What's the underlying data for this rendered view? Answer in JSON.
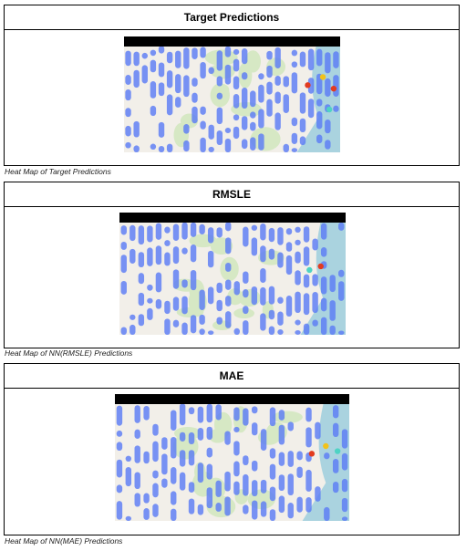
{
  "panels": [
    {
      "title": "Target Predictions",
      "caption": "Heat Map of Target Predictions",
      "map_name": "target-heatmap-map"
    },
    {
      "title": "RMSLE",
      "caption": "Heat Map of NN(RMSLE) Predictions",
      "map_name": "rmsle-heatmap-map"
    },
    {
      "title": "MAE",
      "caption": "Heat Map of NN(MAE) Predictions",
      "map_name": "mae-heatmap-map"
    }
  ],
  "colors": {
    "heat_low": "#5b7cf5",
    "heat_mid": "#4fd3c4",
    "heat_high": "#e23b1f",
    "heat_warm": "#f2c21b",
    "water": "#aad3df",
    "land": "#f2efe9",
    "park": "#cde6b8",
    "map_header_bar": "#000000"
  }
}
